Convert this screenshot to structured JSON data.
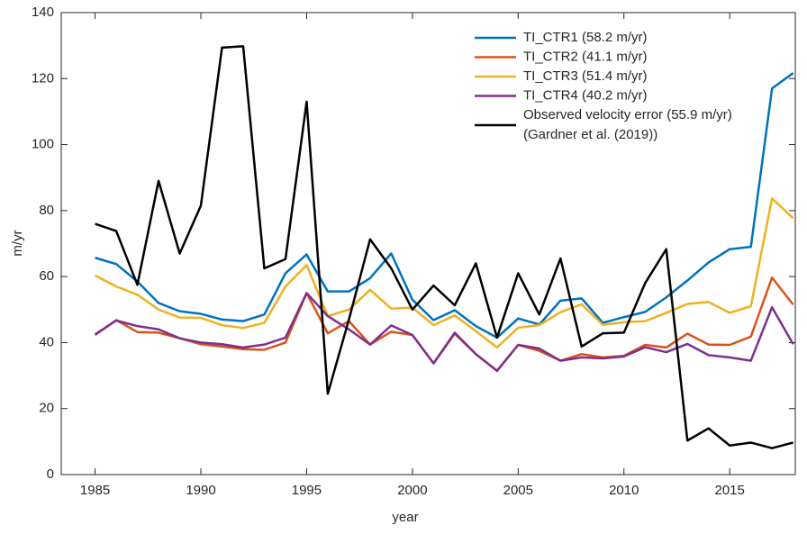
{
  "chart_data": {
    "type": "line",
    "x": [
      1985,
      1986,
      1987,
      1988,
      1989,
      1990,
      1991,
      1992,
      1993,
      1994,
      1995,
      1996,
      1997,
      1998,
      1999,
      2000,
      2001,
      2002,
      2003,
      2004,
      2005,
      2006,
      2007,
      2008,
      2009,
      2010,
      2011,
      2012,
      2013,
      2014,
      2015,
      2016,
      2017,
      2018
    ],
    "series": [
      {
        "name": "TI_CTR1 (58.2 m/yr)",
        "color": "#0072BD",
        "values": [
          65.7,
          63.8,
          58.5,
          52,
          49.5,
          48.7,
          47,
          46.5,
          48.5,
          61,
          66.7,
          55.5,
          55.5,
          59.5,
          67,
          53,
          46.8,
          49.8,
          45,
          41.5,
          47.3,
          45.5,
          52.7,
          53.4,
          46,
          47.7,
          49.3,
          53.7,
          58.8,
          64.3,
          68.3,
          69,
          117,
          121.7
        ]
      },
      {
        "name": "TI_CTR2 (41.1 m/yr)",
        "color": "#D95319",
        "values": [
          42.3,
          46.8,
          43.2,
          43,
          41.3,
          39.5,
          38.8,
          38,
          37.8,
          40,
          55,
          42.8,
          46.5,
          39.4,
          43.3,
          42.3,
          33.7,
          42.7,
          36.5,
          31.5,
          39.3,
          37.5,
          34.5,
          36.5,
          35.5,
          36,
          39.3,
          38.5,
          42.7,
          39.4,
          39.3,
          41.8,
          59.7,
          51.5
        ]
      },
      {
        "name": "TI_CTR3 (51.4 m/yr)",
        "color": "#EDB120",
        "values": [
          60.3,
          57,
          54.5,
          50,
          47.6,
          47.5,
          45.3,
          44.4,
          46,
          57,
          63.5,
          48,
          50,
          56,
          50.3,
          50.6,
          45.3,
          48.2,
          43.5,
          38.5,
          44.5,
          45.3,
          49.2,
          51.6,
          45.4,
          46.2,
          46.5,
          49,
          51.7,
          52.3,
          49,
          51,
          83.7,
          77.7
        ]
      },
      {
        "name": "TI_CTR4 (40.2 m/yr)",
        "color": "#7E2F8E",
        "values": [
          42.5,
          46.7,
          45,
          44,
          41.3,
          40,
          39.5,
          38.5,
          39.4,
          41.5,
          55,
          48,
          44,
          39.4,
          45.2,
          42.3,
          33.7,
          43,
          36.5,
          31.4,
          39.3,
          38.2,
          34.5,
          35.5,
          35.2,
          35.8,
          38.6,
          37.1,
          39.6,
          36.2,
          35.5,
          34.5,
          50.7,
          39.5
        ]
      },
      {
        "name": "Observed velocity error (55.9 m/yr)",
        "note": "(Gardner et al. (2019))",
        "color": "#000000",
        "values": [
          76,
          73.8,
          57.5,
          89,
          67,
          81.5,
          129.4,
          129.8,
          62.5,
          65.3,
          113,
          24.5,
          47,
          71.3,
          62.5,
          50,
          57.3,
          51.3,
          64,
          41.5,
          61,
          48.5,
          65.5,
          38.8,
          42.8,
          43,
          58,
          68.3,
          10.3,
          14,
          8.8,
          9.7,
          8,
          9.7
        ]
      }
    ],
    "xlabel": "year",
    "ylabel": "m/yr",
    "xlim": [
      1983.4,
      2018.1
    ],
    "ylim": [
      0,
      140
    ],
    "xticks": [
      1985,
      1990,
      1995,
      2000,
      2005,
      2010,
      2015
    ],
    "yticks": [
      0,
      20,
      40,
      60,
      80,
      100,
      120,
      140
    ],
    "grid": false,
    "legend": "upper right"
  }
}
